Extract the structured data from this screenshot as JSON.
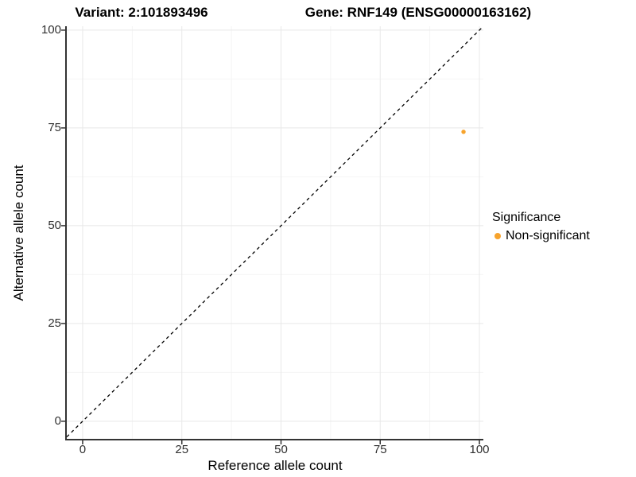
{
  "title": {
    "variant": "Variant: 2:101893496",
    "gene": "Gene: RNF149 (ENSG00000163162)"
  },
  "legend": {
    "title": "Significance",
    "items": [
      {
        "label": "Non-significant",
        "color": "#F7A32C"
      }
    ]
  },
  "chart_data": {
    "type": "scatter",
    "title": "Variant: 2:101893496    Gene: RNF149 (ENSG00000163162)",
    "xlabel": "Reference allele count",
    "ylabel": "Alternative allele count",
    "xlim": [
      -5,
      105
    ],
    "ylim": [
      -5,
      105
    ],
    "x_ticks": [
      0,
      25,
      50,
      75,
      100
    ],
    "y_ticks": [
      0,
      25,
      50,
      75,
      100
    ],
    "minor_ticks": [
      12.5,
      37.5,
      62.5,
      87.5
    ],
    "grid": "major and minor gridlines on, white background",
    "legend_position": "right",
    "series": [
      {
        "name": "Non-significant",
        "color": "#F7A32C",
        "points": [
          {
            "x": 96,
            "y": 74
          }
        ]
      }
    ],
    "reference_line": {
      "slope": 1,
      "intercept": 0,
      "style": "dashed",
      "color": "#000000"
    }
  },
  "colors": {
    "point_non_significant": "#F7A32C",
    "axis_line": "#333333",
    "tick_mark": "#333333",
    "tick_label": "#303030",
    "grid_major": "#e8e8e8",
    "grid_minor": "#f4f4f4"
  }
}
